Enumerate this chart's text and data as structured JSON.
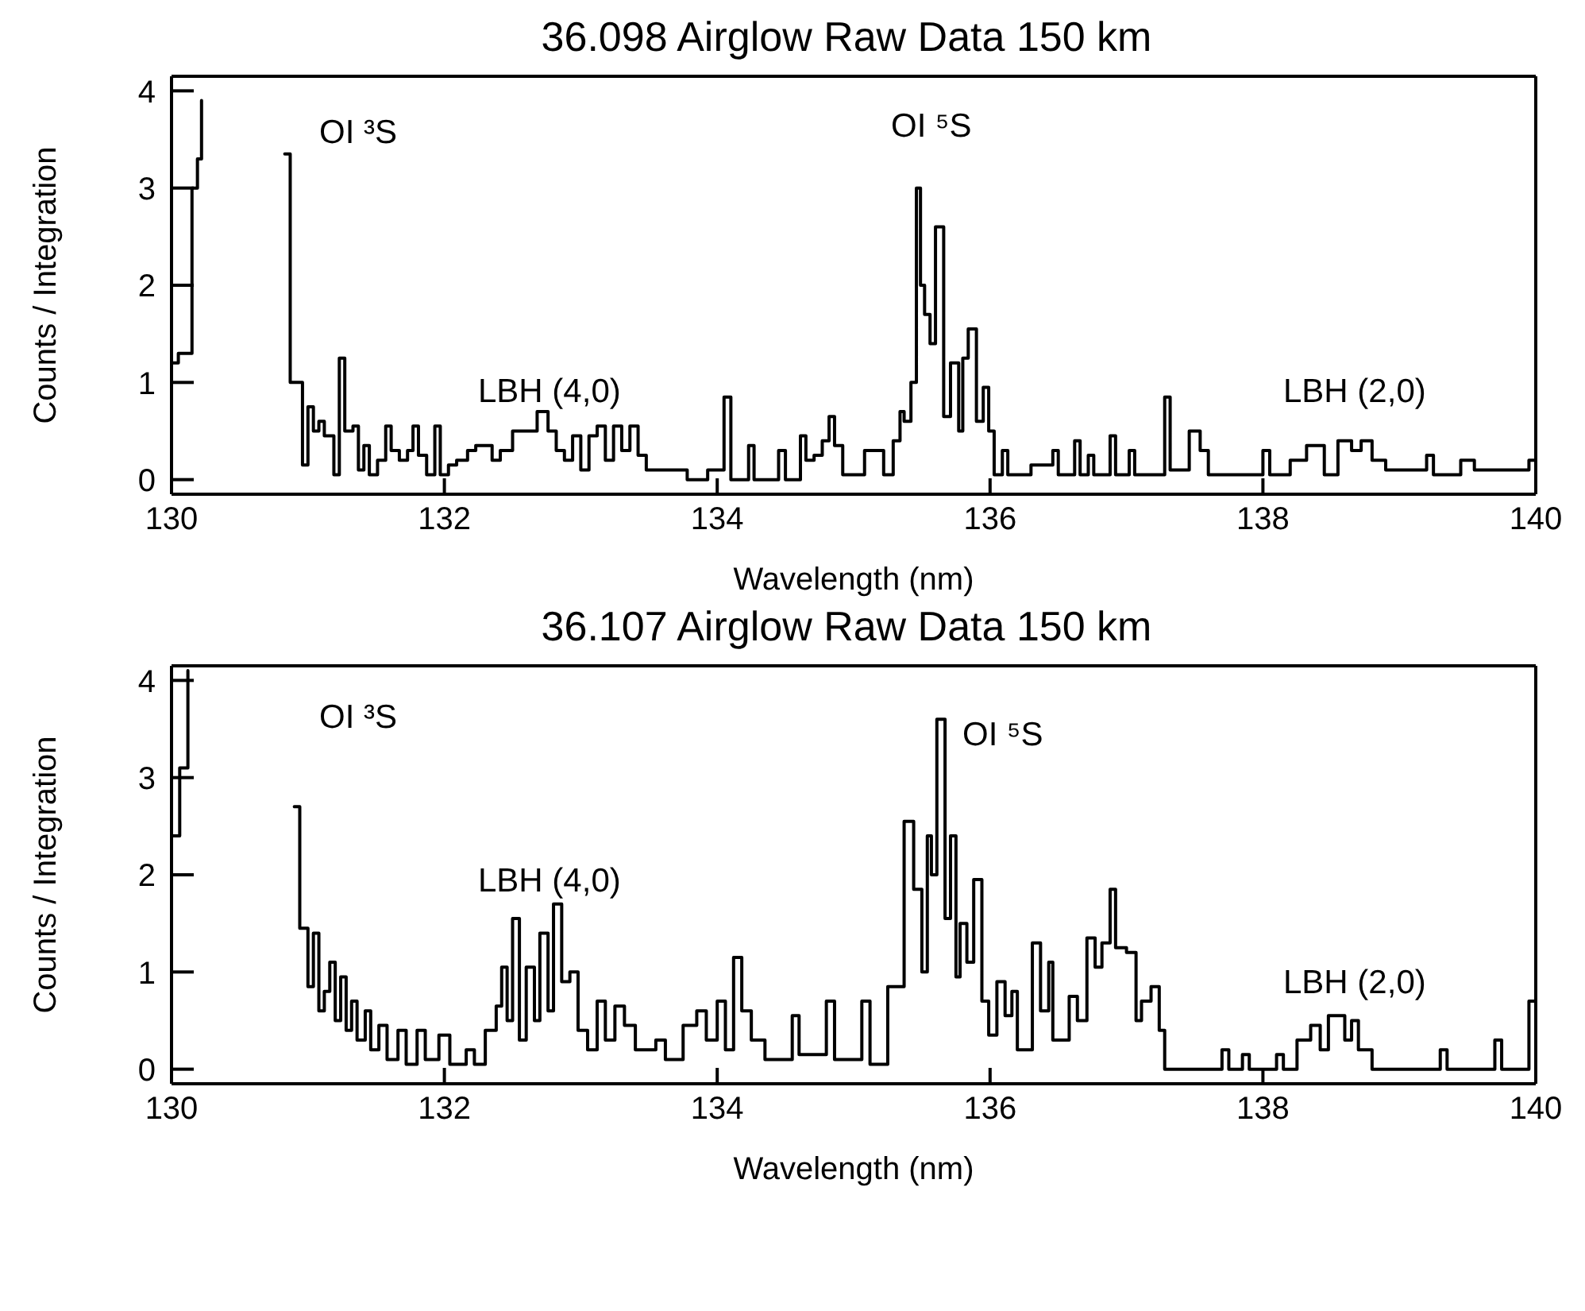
{
  "chart_data": [
    {
      "type": "step",
      "title": "36.098 Airglow Raw Data 150 km",
      "xlabel": "Wavelength (nm)",
      "ylabel": "Counts / Integration",
      "xlim": [
        130,
        140
      ],
      "xticks": [
        130,
        132,
        134,
        136,
        138,
        140
      ],
      "ylim": [
        -0.15,
        4.15
      ],
      "yticks": [
        0,
        1,
        2,
        3,
        4
      ],
      "grid": false,
      "marker": "none",
      "line_style": "solid",
      "x": [
        130.0,
        130.05,
        130.15,
        130.19,
        130.22,
        130.28,
        130.83,
        130.87,
        130.96,
        131.0,
        131.04,
        131.08,
        131.12,
        131.19,
        131.23,
        131.27,
        131.33,
        131.37,
        131.41,
        131.45,
        131.51,
        131.57,
        131.61,
        131.67,
        131.73,
        131.77,
        131.81,
        131.87,
        131.93,
        131.97,
        132.03,
        132.09,
        132.17,
        132.23,
        132.35,
        132.41,
        132.5,
        132.68,
        132.76,
        132.82,
        132.88,
        132.94,
        133.0,
        133.06,
        133.12,
        133.18,
        133.24,
        133.3,
        133.36,
        133.42,
        133.48,
        133.78,
        133.93,
        134.05,
        134.1,
        134.23,
        134.27,
        134.45,
        134.5,
        134.61,
        134.65,
        134.71,
        134.77,
        134.82,
        134.86,
        134.92,
        135.08,
        135.22,
        135.29,
        135.34,
        135.37,
        135.42,
        135.46,
        135.49,
        135.52,
        135.56,
        135.6,
        135.66,
        135.71,
        135.77,
        135.8,
        135.84,
        135.9,
        135.95,
        135.99,
        136.03,
        136.09,
        136.13,
        136.3,
        136.46,
        136.5,
        136.62,
        136.66,
        136.72,
        136.76,
        136.88,
        136.92,
        137.02,
        137.06,
        137.28,
        137.32,
        137.46,
        137.54,
        137.6,
        138.0,
        138.05,
        138.2,
        138.28,
        138.32,
        138.45,
        138.55,
        138.65,
        138.72,
        138.8,
        138.9,
        139.2,
        139.25,
        139.45,
        139.55,
        139.8,
        139.95,
        140.0
      ],
      "series": [
        {
          "color": "#000000",
          "values": [
            1.2,
            1.3,
            3.0,
            3.3,
            3.9,
            null,
            3.35,
            1.0,
            0.15,
            0.75,
            0.5,
            0.6,
            0.45,
            0.05,
            1.25,
            0.5,
            0.55,
            0.1,
            0.35,
            0.05,
            0.2,
            0.55,
            0.3,
            0.2,
            0.3,
            0.55,
            0.25,
            0.05,
            0.55,
            0.05,
            0.15,
            0.2,
            0.3,
            0.35,
            0.2,
            0.3,
            0.5,
            0.7,
            0.5,
            0.3,
            0.2,
            0.45,
            0.1,
            0.45,
            0.55,
            0.2,
            0.55,
            0.3,
            0.55,
            0.25,
            0.1,
            0,
            0.1,
            0.85,
            0,
            0.35,
            0,
            0.3,
            0,
            0.45,
            0.2,
            0.25,
            0.4,
            0.65,
            0.35,
            0.05,
            0.3,
            0.05,
            0.4,
            0.7,
            0.6,
            1.0,
            3.0,
            2.0,
            1.7,
            1.4,
            2.6,
            0.65,
            1.2,
            0.5,
            1.25,
            1.55,
            0.6,
            0.95,
            0.5,
            0.05,
            0.3,
            0.05,
            0.15,
            0.3,
            0.05,
            0.4,
            0.05,
            0.25,
            0.05,
            0.45,
            0.05,
            0.3,
            0.05,
            0.85,
            0.1,
            0.5,
            0.3,
            0.05,
            0.3,
            0.05,
            0.2,
            0.2,
            0.35,
            0.05,
            0.4,
            0.3,
            0.4,
            0.2,
            0.1,
            0.25,
            0.05,
            0.2,
            0.1,
            0.1,
            0.2,
            0.2
          ]
        }
      ],
      "annotations": [
        "OI ³S",
        "OI ⁵S",
        "LBH (4,0)",
        "LBH (2,0)"
      ]
    },
    {
      "type": "step",
      "title": "36.107 Airglow Raw Data 150 km",
      "xlabel": "Wavelength (nm)",
      "ylabel": "Counts / Integration",
      "xlim": [
        130,
        140
      ],
      "xticks": [
        130,
        132,
        134,
        136,
        138,
        140
      ],
      "ylim": [
        -0.15,
        4.15
      ],
      "yticks": [
        0,
        1,
        2,
        3,
        4
      ],
      "grid": false,
      "marker": "none",
      "line_style": "solid",
      "x": [
        130.0,
        130.06,
        130.12,
        130.16,
        130.9,
        130.94,
        131.0,
        131.04,
        131.08,
        131.12,
        131.16,
        131.2,
        131.24,
        131.28,
        131.32,
        131.36,
        131.42,
        131.46,
        131.52,
        131.58,
        131.66,
        131.72,
        131.8,
        131.86,
        131.96,
        132.04,
        132.16,
        132.22,
        132.3,
        132.38,
        132.42,
        132.46,
        132.5,
        132.55,
        132.6,
        132.66,
        132.7,
        132.76,
        132.8,
        132.86,
        132.92,
        132.98,
        133.05,
        133.12,
        133.18,
        133.25,
        133.32,
        133.4,
        133.55,
        133.62,
        133.75,
        133.85,
        133.92,
        134.0,
        134.06,
        134.12,
        134.18,
        134.25,
        134.35,
        134.55,
        134.6,
        134.8,
        134.86,
        135.06,
        135.12,
        135.25,
        135.37,
        135.44,
        135.5,
        135.54,
        135.57,
        135.61,
        135.67,
        135.71,
        135.75,
        135.78,
        135.83,
        135.88,
        135.94,
        135.99,
        136.05,
        136.11,
        136.16,
        136.2,
        136.31,
        136.37,
        136.43,
        136.46,
        136.58,
        136.64,
        136.71,
        136.77,
        136.82,
        136.88,
        136.92,
        137.0,
        137.07,
        137.11,
        137.18,
        137.24,
        137.28,
        137.7,
        137.75,
        137.85,
        137.9,
        138.1,
        138.15,
        138.25,
        138.35,
        138.42,
        138.48,
        138.6,
        138.65,
        138.7,
        138.8,
        139.3,
        139.35,
        139.7,
        139.75,
        139.95,
        140.0
      ],
      "series": [
        {
          "color": "#000000",
          "values": [
            2.4,
            3.1,
            4.1,
            null,
            2.7,
            1.45,
            0.85,
            1.4,
            0.6,
            0.8,
            1.1,
            0.5,
            0.95,
            0.4,
            0.7,
            0.3,
            0.6,
            0.2,
            0.45,
            0.1,
            0.4,
            0.05,
            0.4,
            0.1,
            0.35,
            0.05,
            0.2,
            0.05,
            0.4,
            0.65,
            1.05,
            0.5,
            1.55,
            0.3,
            1.05,
            0.5,
            1.4,
            0.6,
            1.7,
            0.9,
            1.0,
            0.4,
            0.2,
            0.7,
            0.3,
            0.65,
            0.45,
            0.2,
            0.3,
            0.1,
            0.45,
            0.6,
            0.3,
            0.7,
            0.2,
            1.15,
            0.6,
            0.3,
            0.1,
            0.55,
            0.15,
            0.7,
            0.1,
            0.7,
            0.05,
            0.85,
            2.55,
            1.85,
            1.0,
            2.4,
            2.0,
            3.6,
            1.55,
            2.4,
            0.95,
            1.5,
            1.1,
            1.95,
            0.7,
            0.35,
            0.9,
            0.55,
            0.8,
            0.2,
            1.3,
            0.6,
            1.1,
            0.3,
            0.75,
            0.5,
            1.35,
            1.05,
            1.3,
            1.85,
            1.25,
            1.2,
            0.5,
            0.7,
            0.85,
            0.4,
            0,
            0.2,
            0,
            0.15,
            0,
            0.15,
            0,
            0.3,
            0.45,
            0.2,
            0.55,
            0.3,
            0.5,
            0.2,
            0,
            0.2,
            0,
            0.3,
            0,
            0.7,
            0.7
          ]
        }
      ],
      "annotations": [
        "OI ³S",
        "OI ⁵S",
        "LBH (4,0)",
        "LBH (2,0)"
      ]
    }
  ]
}
